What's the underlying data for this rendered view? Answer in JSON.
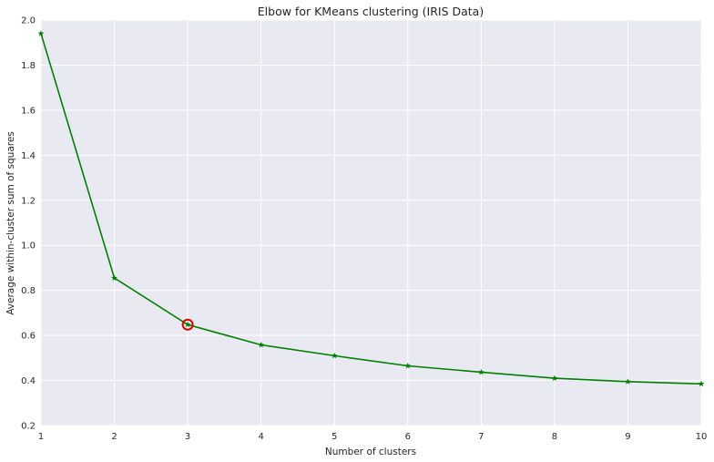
{
  "chart_data": {
    "type": "line",
    "title": "Elbow for KMeans clustering (IRIS Data)",
    "xlabel": "Number of clusters",
    "ylabel": "Average within-cluster sum of squares",
    "xlim": [
      1,
      10
    ],
    "ylim": [
      0.2,
      2.0
    ],
    "x_ticks": [
      1,
      2,
      3,
      4,
      5,
      6,
      7,
      8,
      9,
      10
    ],
    "y_ticks": [
      0.2,
      0.4,
      0.6,
      0.8,
      1.0,
      1.2,
      1.4,
      1.6,
      1.8,
      2.0
    ],
    "x_tick_labels": [
      "1",
      "2",
      "3",
      "4",
      "5",
      "6",
      "7",
      "8",
      "9",
      "10"
    ],
    "y_tick_labels": [
      "0.2",
      "0.4",
      "0.6",
      "0.8",
      "1.0",
      "1.2",
      "1.4",
      "1.6",
      "1.8",
      "2.0"
    ],
    "grid": true,
    "series": [
      {
        "x": [
          1,
          2,
          3,
          4,
          5,
          6,
          7,
          8,
          9,
          10
        ],
        "y": [
          1.94,
          0.855,
          0.648,
          0.558,
          0.51,
          0.465,
          0.437,
          0.41,
          0.395,
          0.385
        ],
        "color": "#008000",
        "marker": "star"
      }
    ],
    "highlight": {
      "x": 3,
      "y": 0.648,
      "color": "#e00000",
      "marker": "circle"
    }
  },
  "style": {
    "plot_background": "#e9e9f1",
    "grid_color": "#ffffff"
  }
}
